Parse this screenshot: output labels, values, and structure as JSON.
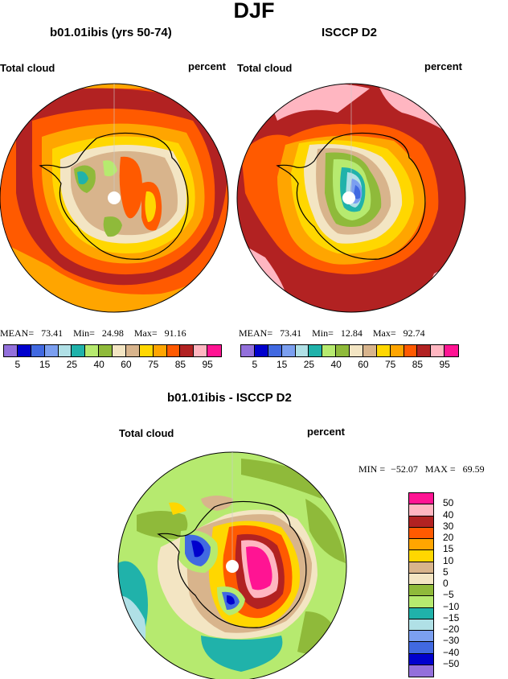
{
  "figure": {
    "season": "DJF",
    "diff_title": "b01.01ibis - ISCCP D2"
  },
  "panel_left": {
    "title": "b01.01ibis (yrs 50-74)",
    "variable": "Total cloud",
    "units": "percent",
    "mean_label": "MEAN=",
    "mean": "73.41",
    "min_label": "Min=",
    "min": "24.98",
    "max_label": "Max=",
    "max": "91.16"
  },
  "panel_right": {
    "title": "ISCCP D2",
    "variable": "Total cloud",
    "units": "percent",
    "mean_label": "MEAN=",
    "mean": "73.41",
    "min_label": "Min=",
    "min": "12.84",
    "max_label": "Max=",
    "max": "92.74"
  },
  "panel_diff": {
    "variable": "Total cloud",
    "units": "percent",
    "min_label": "MIN =",
    "min": "−52.07",
    "max_label": "MAX =",
    "max": "69.59"
  },
  "colorbar_abs": {
    "colors": [
      "#9370db",
      "#0000cd",
      "#4169e1",
      "#7b9ff0",
      "#b0e0e6",
      "#20b2aa",
      "#b6ea6f",
      "#8fba3a",
      "#f3e5c3",
      "#d8b48c",
      "#ffd700",
      "#ffa500",
      "#ff5a00",
      "#b22222",
      "#ffb6c1",
      "#ff1493"
    ],
    "tick_labels": [
      "5",
      "15",
      "25",
      "40",
      "60",
      "75",
      "85",
      "95"
    ]
  },
  "colorbar_diff": {
    "colors_top_to_bottom": [
      "#ff1493",
      "#ffb6c1",
      "#b22222",
      "#ff5a00",
      "#ffa500",
      "#ffd700",
      "#d8b48c",
      "#f3e5c3",
      "#8fba3a",
      "#b6ea6f",
      "#20b2aa",
      "#b0e0e6",
      "#7b9ff0",
      "#4169e1",
      "#0000cd",
      "#9370db"
    ],
    "tick_labels": [
      "50",
      "40",
      "30",
      "20",
      "15",
      "10",
      "5",
      "0",
      "−5",
      "−10",
      "−15",
      "−20",
      "−30",
      "−40",
      "−50"
    ]
  }
}
